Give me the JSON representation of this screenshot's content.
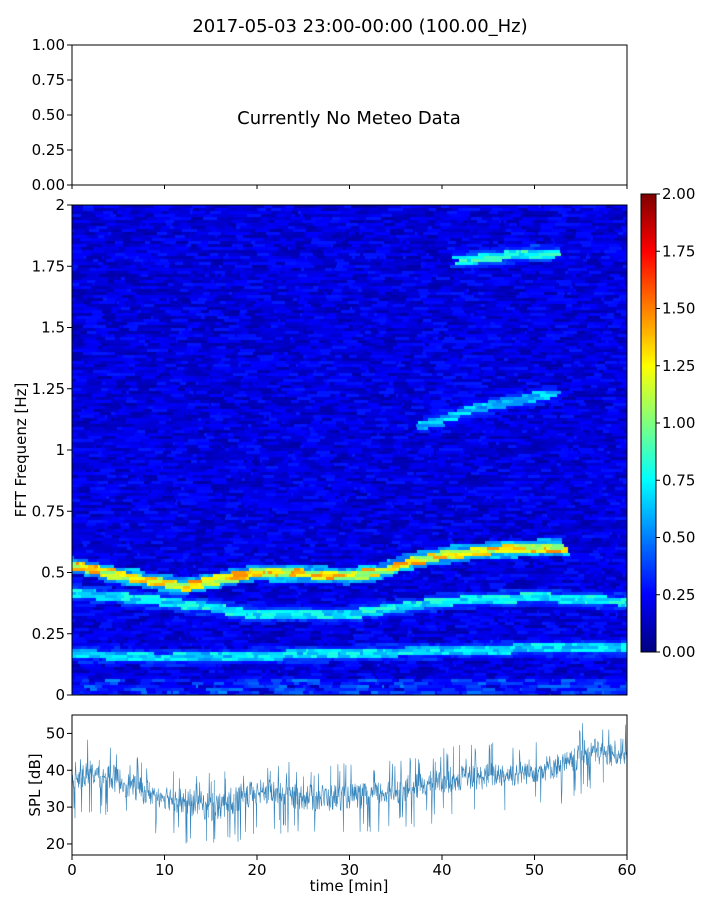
{
  "figure": {
    "title": "2017-05-03 23:00-00:00 (100.00_Hz)"
  },
  "chart_data": [
    {
      "type": "line",
      "panel": "meteo",
      "annotation": "Currently No Meteo Data",
      "ylim": [
        0,
        1
      ],
      "yticks": [
        "0.00",
        "0.25",
        "0.50",
        "0.75",
        "1.00"
      ],
      "xlim": [
        0,
        60
      ],
      "xlabel": "",
      "ylabel": "",
      "series": []
    },
    {
      "type": "heatmap",
      "panel": "spectrogram",
      "xlabel": "",
      "ylabel": "FFT Frequenz [Hz]",
      "xlim": [
        0,
        60
      ],
      "ylim": [
        0,
        2
      ],
      "yticks": [
        "0",
        "0.25",
        "0.5",
        "0.75",
        "1",
        "1.25",
        "1.5",
        "1.75",
        "2"
      ],
      "colorbar": {
        "colormap": "jet",
        "range": [
          0,
          2
        ],
        "ticks": [
          "0.00",
          "0.25",
          "0.50",
          "0.75",
          "1.00",
          "1.25",
          "1.50",
          "1.75",
          "2.00"
        ]
      },
      "background_level": 0.2,
      "ridges": [
        {
          "points": [
            [
              0,
              0.53
            ],
            [
              5,
              0.49
            ],
            [
              12,
              0.44
            ],
            [
              16,
              0.47
            ],
            [
              20,
              0.5
            ],
            [
              25,
              0.495
            ],
            [
              30,
              0.485
            ],
            [
              33,
              0.5
            ],
            [
              36,
              0.54
            ],
            [
              40,
              0.57
            ],
            [
              45,
              0.59
            ],
            [
              50,
              0.6
            ],
            [
              53,
              0.6
            ]
          ],
          "level": 1.3
        },
        {
          "points": [
            [
              0,
              0.42
            ],
            [
              10,
              0.38
            ],
            [
              20,
              0.33
            ],
            [
              30,
              0.33
            ],
            [
              40,
              0.38
            ],
            [
              50,
              0.4
            ],
            [
              60,
              0.38
            ]
          ],
          "level": 0.75
        },
        {
          "points": [
            [
              0,
              0.17
            ],
            [
              10,
              0.15
            ],
            [
              20,
              0.16
            ],
            [
              30,
              0.17
            ],
            [
              40,
              0.18
            ],
            [
              50,
              0.19
            ],
            [
              60,
              0.19
            ]
          ],
          "level": 0.7
        },
        {
          "points": [
            [
              38,
              1.1
            ],
            [
              44,
              1.17
            ],
            [
              52,
              1.23
            ]
          ],
          "level": 0.65
        },
        {
          "points": [
            [
              42,
              1.77
            ],
            [
              46,
              1.79
            ],
            [
              49,
              1.8
            ],
            [
              52,
              1.8
            ]
          ],
          "level": 0.8
        }
      ]
    },
    {
      "type": "area",
      "panel": "spl",
      "xlabel": "time [min]",
      "ylabel": "SPL [dB]",
      "xlim": [
        0,
        60
      ],
      "ylim": [
        17,
        55
      ],
      "xticks": [
        "0",
        "10",
        "20",
        "30",
        "40",
        "50",
        "60"
      ],
      "yticks": [
        "20",
        "30",
        "40",
        "50"
      ],
      "color": "#1f77b4",
      "x": [
        0,
        2,
        4,
        6,
        8,
        10,
        12,
        14,
        16,
        18,
        20,
        22,
        24,
        26,
        28,
        30,
        32,
        34,
        36,
        38,
        40,
        42,
        44,
        46,
        48,
        50,
        52,
        54,
        56,
        58,
        60
      ],
      "values": [
        37,
        39,
        38,
        36,
        34,
        33,
        32,
        31,
        30,
        32,
        34,
        34,
        33,
        33,
        33,
        33,
        33,
        34,
        35,
        36,
        37,
        38,
        38,
        39,
        39,
        40,
        41,
        42,
        45,
        44,
        45
      ],
      "band_low": [
        32,
        34,
        33,
        31,
        29,
        28,
        26,
        25,
        24,
        26,
        29,
        29,
        28,
        27,
        27,
        28,
        28,
        29,
        30,
        31,
        32,
        33,
        33,
        34,
        34,
        35,
        36,
        37,
        40,
        39,
        40
      ],
      "band_high": [
        41,
        45,
        44,
        41,
        39,
        38,
        37,
        36,
        36,
        38,
        39,
        39,
        38,
        38,
        38,
        38,
        38,
        39,
        40,
        41,
        42,
        43,
        43,
        44,
        44,
        45,
        46,
        47,
        51,
        49,
        51
      ]
    }
  ]
}
